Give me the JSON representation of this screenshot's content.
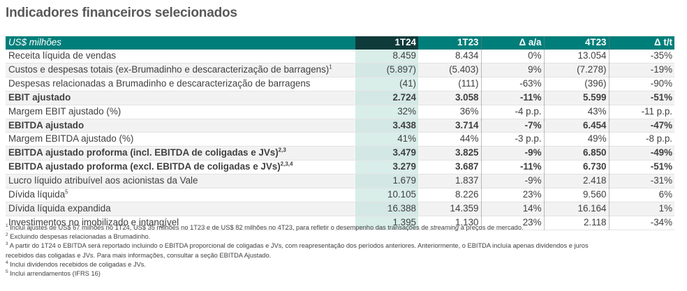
{
  "title": "Indicadores financeiros selecionados",
  "table": {
    "header": {
      "label": "US$ milhões",
      "col1": "1T24",
      "col2": "1T23",
      "col3": "Δ a/a",
      "col4": "4T23",
      "col5": "Δ t/t"
    },
    "rows": [
      {
        "label": "Receita líquida de vendas",
        "sup": "",
        "v1": "8.459",
        "v2": "8.434",
        "v3": "0%",
        "v4": "13.054",
        "v5": "-35%"
      },
      {
        "label": "Custos e despesas totais (ex-Brumadinho e descaracterização de barragens)",
        "sup": "1",
        "v1": "(5.897)",
        "v2": "(5.403)",
        "v3": "9%",
        "v4": "(7.278)",
        "v5": "-19%"
      },
      {
        "label": "Despesas relacionadas a Brumadinho e descaracterização de barragens",
        "sup": "",
        "v1": "(41)",
        "v2": "(111)",
        "v3": "-63%",
        "v4": "(396)",
        "v5": "-90%"
      },
      {
        "label": "EBIT ajustado",
        "sup": "",
        "v1": "2.724",
        "v2": "3.058",
        "v3": "-11%",
        "v4": "5.599",
        "v5": "-51%"
      },
      {
        "label": "Margem EBIT ajustado (%)",
        "sup": "",
        "v1": "32%",
        "v2": "36%",
        "v3": "-4 p.p.",
        "v4": "43%",
        "v5": "-11 p.p."
      },
      {
        "label": "EBITDA ajustado",
        "sup": "",
        "v1": "3.438",
        "v2": "3.714",
        "v3": "-7%",
        "v4": "6.454",
        "v5": "-47%"
      },
      {
        "label": "Margem EBITDA ajustado (%)",
        "sup": "",
        "v1": "41%",
        "v2": "44%",
        "v3": "-3 p.p.",
        "v4": "49%",
        "v5": "-8 p.p."
      },
      {
        "label": "EBITDA ajustado proforma (incl. EBITDA de coligadas e JVs)",
        "sup": "2,3",
        "v1": "3.479",
        "v2": "3.825",
        "v3": "-9%",
        "v4": "6.850",
        "v5": "-49%"
      },
      {
        "label": "EBITDA ajustado proforma (excl. EBITDA de coligadas e JVs)",
        "sup": "2,3,4",
        "v1": "3.279",
        "v2": "3.687",
        "v3": "-11%",
        "v4": "6.730",
        "v5": "-51%"
      },
      {
        "label": "Lucro líquido atribuível aos acionistas da Vale",
        "sup": "",
        "v1": "1.679",
        "v2": "1.837",
        "v3": "-9%",
        "v4": "2.418",
        "v5": "-31%"
      },
      {
        "label": "Dívida líquida",
        "sup": "5",
        "v1": "10.105",
        "v2": "8.226",
        "v3": "23%",
        "v4": "9.560",
        "v5": "6%"
      },
      {
        "label": "Dívida líquida expandida",
        "sup": "",
        "v1": "16.388",
        "v2": "14.359",
        "v3": "14%",
        "v4": "16.164",
        "v5": "1%"
      },
      {
        "label": "Investimentos no imobilizado e intangível",
        "sup": "",
        "v1": "1.395",
        "v2": "1.130",
        "v3": "23%",
        "v4": "2.118",
        "v5": "-34%"
      }
    ]
  },
  "footnotes": [
    {
      "num": "1",
      "text_before": " Inclui ajustes de US$ 67 milhões no 1T24, US$ 35 milhões no 1T23 e de US$ 82 milhões no 4T23, para refletir o desempenho das transações de ",
      "italic": "streaming",
      "text_after": " à preços de mercado."
    },
    {
      "num": "2",
      "text_before": " Excluindo despesas relacionadas a Brumadinho.",
      "italic": "",
      "text_after": ""
    },
    {
      "num": "3",
      "text_before": " A partir do 1T24 o EBITDA será reportado incluindo o EBITDA proporcional de coligadas e JVs, com reapresentação dos períodos anteriores. Anteriormente, o EBITDA incluía apenas dividendos e juros",
      "italic": "",
      "text_after": ""
    },
    {
      "num": "",
      "text_before": "recebidos das coligadas e JVs. Para mais informações, consultar a seção EBITDA Ajustado.",
      "italic": "",
      "text_after": ""
    },
    {
      "num": "4",
      "text_before": " Inclui dividendos recebidos de coligadas e JVs.",
      "italic": "",
      "text_after": ""
    },
    {
      "num": "5",
      "text_before": " Inclui arrendamentos (IFRS 16)",
      "italic": "",
      "text_after": ""
    }
  ]
}
